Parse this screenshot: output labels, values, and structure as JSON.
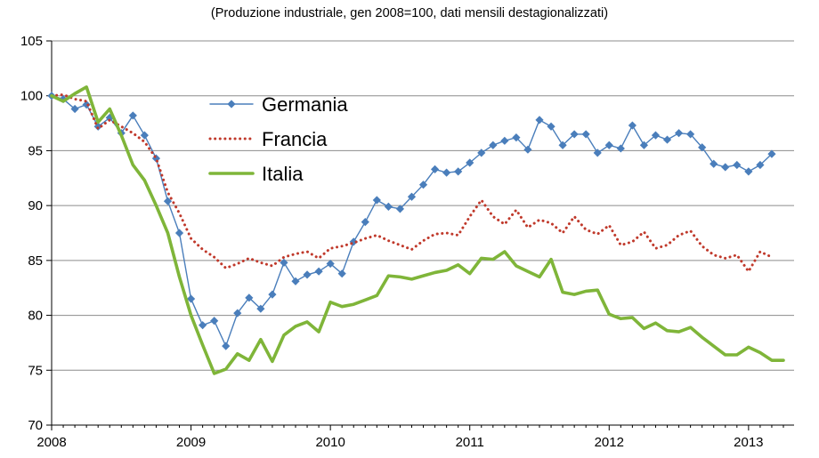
{
  "chart_data": {
    "type": "line",
    "subtitle": "(Produzione industriale, gen 2008=100,  dati mensili destagionalizzati)",
    "xlabel": "",
    "ylabel": "",
    "ylim": [
      70,
      105
    ],
    "yticks": [
      "70",
      "75",
      "80",
      "85",
      "90",
      "95",
      "100",
      "105"
    ],
    "xlim": [
      0,
      64
    ],
    "xticks": [
      {
        "label": "2008",
        "x": 0
      },
      {
        "label": "2009",
        "x": 12
      },
      {
        "label": "2010",
        "x": 24
      },
      {
        "label": "2011",
        "x": 36
      },
      {
        "label": "2012",
        "x": 48
      },
      {
        "label": "2013",
        "x": 60
      }
    ],
    "grid": "horizontal",
    "legend_position": "upper-center",
    "series": [
      {
        "name": "Germania",
        "color": "#4a7ebb",
        "style": "line-with-diamond-markers",
        "values": [
          100.0,
          99.7,
          98.8,
          99.2,
          97.2,
          98.0,
          96.6,
          98.2,
          96.4,
          94.3,
          90.4,
          87.5,
          81.5,
          79.1,
          79.5,
          77.2,
          80.2,
          81.6,
          80.6,
          81.9,
          84.8,
          83.1,
          83.7,
          84.0,
          84.7,
          83.8,
          86.7,
          88.5,
          90.5,
          89.9,
          89.7,
          90.8,
          91.9,
          93.3,
          93.0,
          93.1,
          93.9,
          94.8,
          95.5,
          95.9,
          96.2,
          95.1,
          97.8,
          97.2,
          95.5,
          96.5,
          96.5,
          94.8,
          95.5,
          95.2,
          97.3,
          95.5,
          96.4,
          96.0,
          96.6,
          96.5,
          95.3,
          93.8,
          93.5,
          93.7,
          93.1,
          93.7,
          94.7
        ]
      },
      {
        "name": "Francia",
        "color": "#c0392b",
        "style": "dotted",
        "values": [
          100.0,
          100.1,
          99.7,
          99.5,
          97.0,
          97.8,
          97.2,
          96.6,
          95.8,
          94.3,
          91.2,
          89.3,
          87.0,
          86.0,
          85.3,
          84.3,
          84.7,
          85.2,
          84.8,
          84.5,
          85.3,
          85.6,
          85.8,
          85.2,
          86.1,
          86.3,
          86.6,
          87.0,
          87.3,
          86.8,
          86.4,
          86.0,
          86.8,
          87.4,
          87.5,
          87.3,
          89.0,
          90.5,
          89.0,
          88.3,
          89.6,
          88.0,
          88.7,
          88.4,
          87.5,
          89.0,
          87.8,
          87.4,
          88.2,
          86.4,
          86.7,
          87.6,
          86.1,
          86.4,
          87.3,
          87.7,
          86.3,
          85.5,
          85.2,
          85.5,
          84.0,
          85.8,
          85.3
        ]
      },
      {
        "name": "Italia",
        "color": "#7fb539",
        "style": "solid-thick",
        "values": [
          100.0,
          99.5,
          100.2,
          100.8,
          97.6,
          98.8,
          96.4,
          93.7,
          92.3,
          90.0,
          87.5,
          83.5,
          80.0,
          77.3,
          74.7,
          75.1,
          76.5,
          75.9,
          77.8,
          75.8,
          78.2,
          79.0,
          79.4,
          78.5,
          81.2,
          80.8,
          81.0,
          81.4,
          81.8,
          83.6,
          83.5,
          83.3,
          83.6,
          83.9,
          84.1,
          84.6,
          83.8,
          85.2,
          85.1,
          85.8,
          84.5,
          84.0,
          83.5,
          85.1,
          82.1,
          81.9,
          82.2,
          82.3,
          80.1,
          79.7,
          79.8,
          78.8,
          79.3,
          78.6,
          78.5,
          78.9,
          78.0,
          77.2,
          76.4,
          76.4,
          77.1,
          76.6,
          75.9,
          75.9
        ]
      }
    ]
  }
}
